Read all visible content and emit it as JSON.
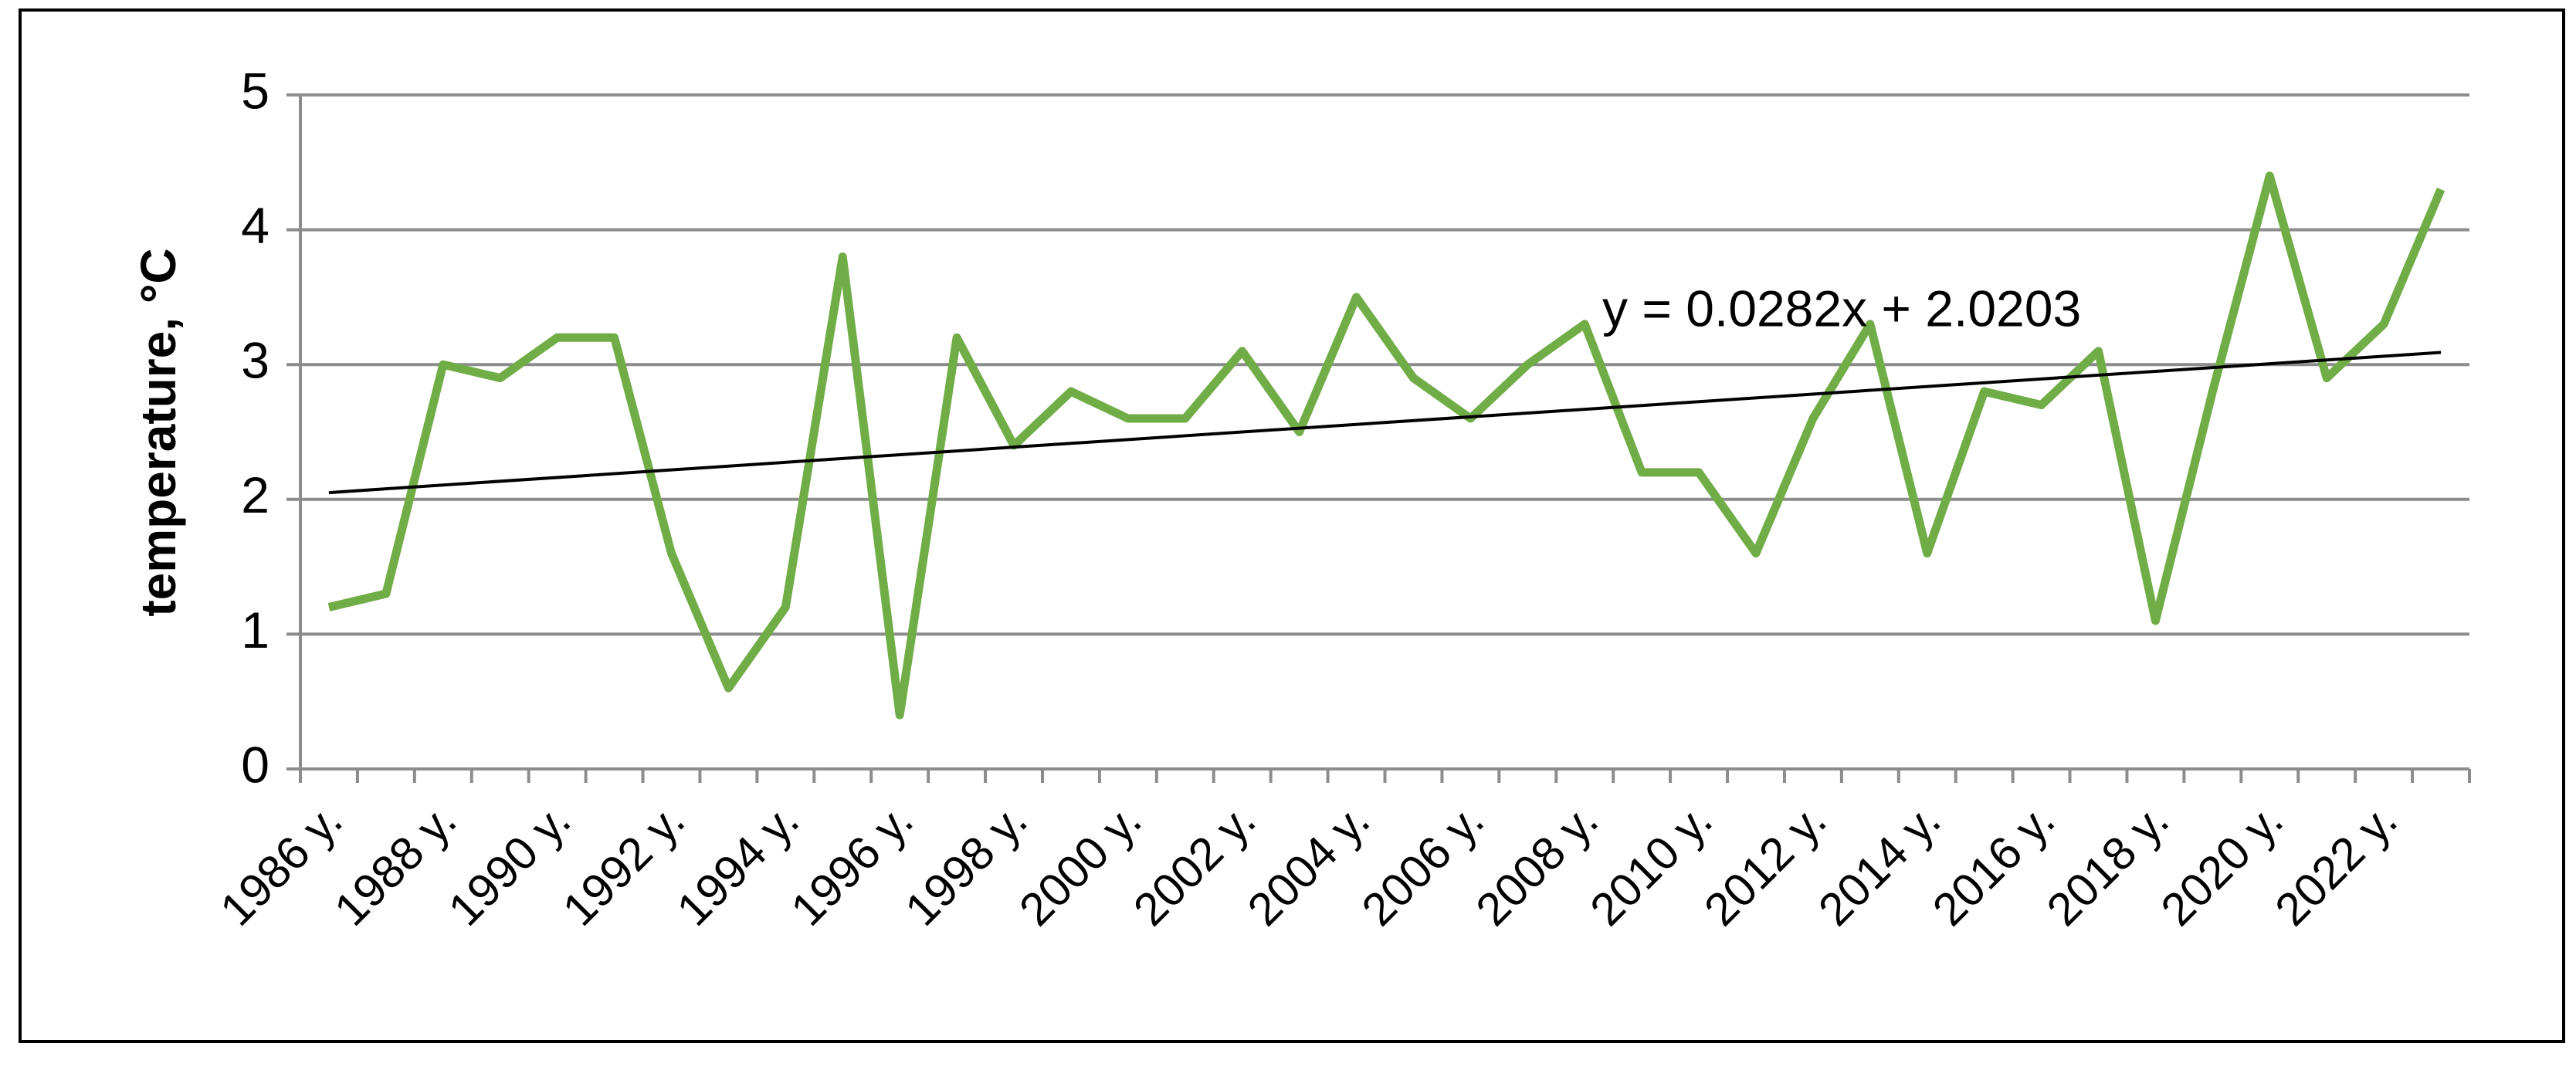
{
  "chart_data": {
    "type": "line",
    "y_label": "temperature, °C",
    "categories": [
      "1986 y.",
      null,
      "1988 y.",
      null,
      "1990 y.",
      null,
      "1992 y.",
      null,
      "1994 y.",
      null,
      "1996 y.",
      null,
      "1998 y.",
      null,
      "2000 y.",
      null,
      "2002 y.",
      null,
      "2004 y.",
      null,
      "2006 y.",
      null,
      "2008 y.",
      null,
      "2010 y.",
      null,
      "2012 y.",
      null,
      "2014 y.",
      null,
      "2016 y.",
      null,
      "2018 y.",
      null,
      "2020 y.",
      null,
      "2022 y.",
      null
    ],
    "series": [
      {
        "name": "temperature",
        "color": "#70ad47",
        "values": [
          1.2,
          1.3,
          3.0,
          2.9,
          3.2,
          3.2,
          1.6,
          0.6,
          1.2,
          3.8,
          0.4,
          3.2,
          2.4,
          2.8,
          2.6,
          2.6,
          3.1,
          2.5,
          3.5,
          2.9,
          2.6,
          3.0,
          3.3,
          2.2,
          2.2,
          1.6,
          2.6,
          3.3,
          1.6,
          2.8,
          2.7,
          3.1,
          1.1,
          2.8,
          4.4,
          2.9,
          3.3,
          4.3
        ]
      }
    ],
    "trendline": {
      "label": "y = 0.0282x + 2.0203",
      "color": "#000000",
      "values": [
        2.05,
        3.09
      ]
    },
    "ylim": [
      0,
      5
    ],
    "yticks": [
      0,
      1,
      2,
      3,
      4,
      5
    ],
    "grid": true
  }
}
